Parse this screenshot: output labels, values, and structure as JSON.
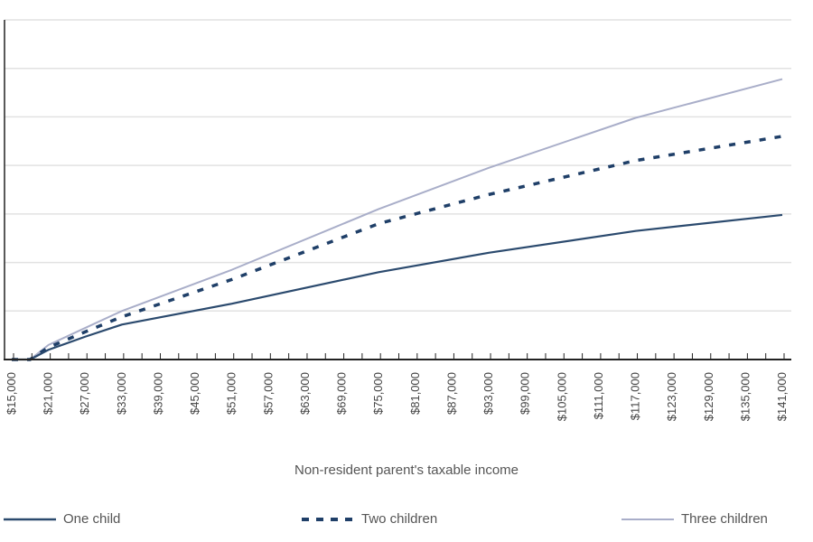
{
  "chart_data": {
    "type": "line",
    "title": "",
    "xlabel": "Non-resident parent's taxable income",
    "ylabel": "",
    "xlim": [
      15000,
      141000
    ],
    "ylim": [
      0,
      7
    ],
    "y_tick_labels_shown": false,
    "grid": true,
    "legend_position": "bottom",
    "x_tick_labels": [
      "$15,000",
      "$21,000",
      "$27,000",
      "$33,000",
      "$39,000",
      "$45,000",
      "$51,000",
      "$57,000",
      "$63,000",
      "$69,000",
      "$75,000",
      "$81,000",
      "$87,000",
      "$93,000",
      "$99,000",
      "$105,000",
      "$111,000",
      "$117,000",
      "$123,000",
      "$129,000",
      "$135,000",
      "$141,000"
    ],
    "x": [
      15000,
      18000,
      21000,
      27000,
      33000,
      51000,
      75000,
      93000,
      117000,
      141000
    ],
    "series": [
      {
        "name": "One child",
        "color": "#2b4a6e",
        "style": "solid",
        "values": [
          0,
          0,
          0.2,
          0.47,
          0.72,
          1.15,
          1.8,
          2.2,
          2.65,
          2.98
        ]
      },
      {
        "name": "Two children",
        "color": "#1f3f68",
        "style": "dashed",
        "values": [
          0,
          0,
          0.25,
          0.57,
          0.88,
          1.65,
          2.8,
          3.4,
          4.1,
          4.6
        ]
      },
      {
        "name": "Three children",
        "color": "#a9aec9",
        "style": "solid",
        "values": [
          0,
          0,
          0.3,
          0.65,
          1.0,
          1.85,
          3.1,
          3.95,
          4.98,
          5.78
        ]
      }
    ]
  }
}
